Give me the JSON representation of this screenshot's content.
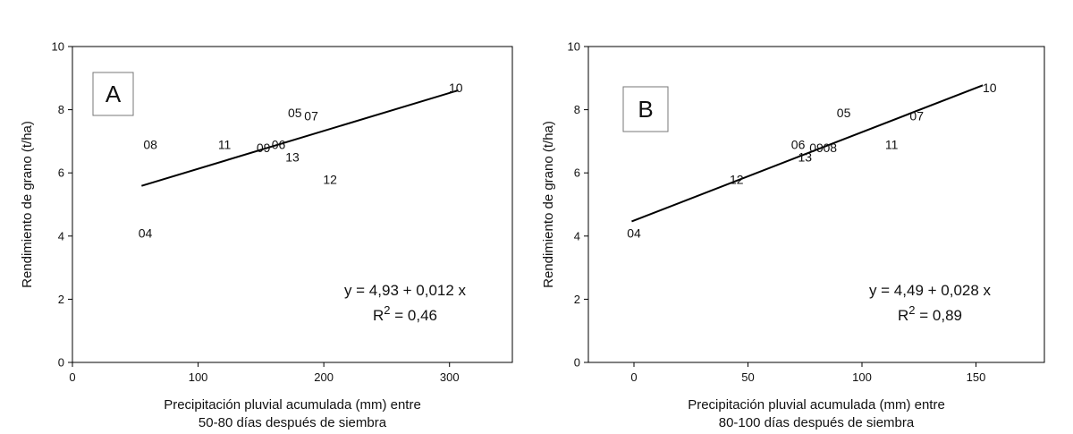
{
  "chart_data": [
    {
      "type": "scatter",
      "panel_label": "A",
      "ylabel": "Rendimiento de grano (t/ha)",
      "xlabel_line1": "Precipitación pluvial acumulada (mm) entre",
      "xlabel_line2": "50-80 días después de siembra",
      "xlim": [
        0,
        350
      ],
      "ylim": [
        0,
        10
      ],
      "xticks": [
        0,
        100,
        200,
        300
      ],
      "yticks": [
        0,
        2,
        4,
        6,
        8,
        10
      ],
      "points": [
        {
          "label": "04",
          "x": 58,
          "y": 4.1
        },
        {
          "label": "08",
          "x": 62,
          "y": 6.9
        },
        {
          "label": "11",
          "x": 121,
          "y": 6.9
        },
        {
          "label": "09",
          "x": 152,
          "y": 6.8
        },
        {
          "label": "06",
          "x": 164,
          "y": 6.9
        },
        {
          "label": "05",
          "x": 177,
          "y": 7.9
        },
        {
          "label": "07",
          "x": 190,
          "y": 7.8
        },
        {
          "label": "13",
          "x": 175,
          "y": 6.5
        },
        {
          "label": "12",
          "x": 205,
          "y": 5.8
        },
        {
          "label": "10",
          "x": 305,
          "y": 8.7
        }
      ],
      "regression": {
        "intercept": 4.93,
        "slope": 0.012,
        "x_range": [
          55,
          307
        ]
      },
      "equation": "y = 4,93 + 0,012 x",
      "r2_prefix": "R",
      "r2_sup": "2",
      "r2_value": " = 0,46"
    },
    {
      "type": "scatter",
      "panel_label": "B",
      "ylabel": "Rendimiento de grano (t/ha)",
      "xlabel_line1": "Precipitación pluvial acumulada (mm) entre",
      "xlabel_line2": "80-100 días después de siembra",
      "xlim": [
        -20,
        180
      ],
      "ylim": [
        0,
        10
      ],
      "xticks": [
        0,
        50,
        100,
        150
      ],
      "yticks": [
        0,
        2,
        4,
        6,
        8,
        10
      ],
      "points": [
        {
          "label": "04",
          "x": 0,
          "y": 4.1
        },
        {
          "label": "12",
          "x": 45,
          "y": 5.8
        },
        {
          "label": "06",
          "x": 72,
          "y": 6.9
        },
        {
          "label": "13",
          "x": 75,
          "y": 6.5
        },
        {
          "label": "09",
          "x": 80,
          "y": 6.8
        },
        {
          "label": "08",
          "x": 86,
          "y": 6.8
        },
        {
          "label": "05",
          "x": 92,
          "y": 7.9
        },
        {
          "label": "07",
          "x": 124,
          "y": 7.8
        },
        {
          "label": "11",
          "x": 113,
          "y": 6.9
        },
        {
          "label": "10",
          "x": 156,
          "y": 8.7
        }
      ],
      "regression": {
        "intercept": 4.49,
        "slope": 0.028,
        "x_range": [
          -1,
          153
        ]
      },
      "equation": "y = 4,49 + 0,028 x",
      "r2_prefix": "R",
      "r2_sup": "2",
      "r2_value": " = 0,89"
    }
  ]
}
